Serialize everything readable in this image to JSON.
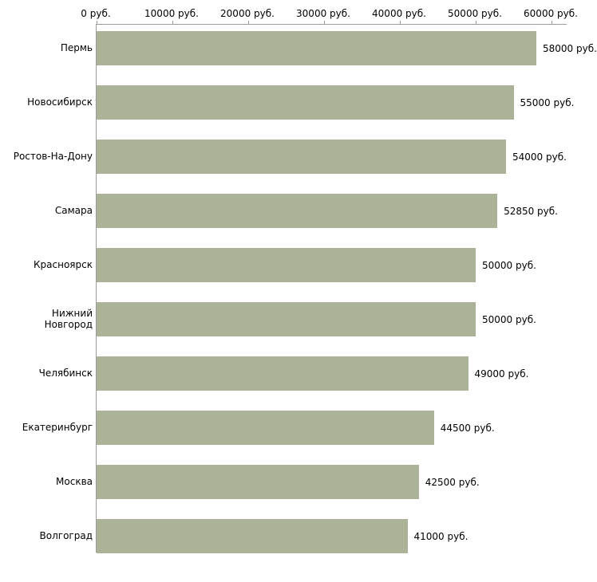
{
  "chart_data": {
    "type": "bar",
    "orientation": "horizontal",
    "title": "",
    "xlabel": "",
    "ylabel": "",
    "unit": "руб.",
    "categories": [
      "Пермь",
      "Новосибирск",
      "Ростов-На-Дону",
      "Самара",
      "Красноярск",
      "Нижний Новгород",
      "Челябинск",
      "Екатеринбург",
      "Москва",
      "Волгоград"
    ],
    "values": [
      58000,
      55000,
      54000,
      52850,
      50000,
      50000,
      49000,
      44500,
      42500,
      41000
    ],
    "value_labels": [
      "58000 руб.",
      "55000 руб.",
      "54000 руб.",
      "52850 руб.",
      "50000 руб.",
      "50000 руб.",
      "49000 руб.",
      "44500 руб.",
      "42500 руб.",
      "41000 руб."
    ],
    "x_ticks": [
      "0 руб.",
      "10000 руб.",
      "20000 руб.",
      "30000 руб.",
      "40000 руб.",
      "50000 руб.",
      "60000 руб."
    ],
    "x_tick_values": [
      0,
      10000,
      20000,
      30000,
      40000,
      50000,
      60000
    ],
    "xlim": [
      0,
      62100
    ],
    "bar_color": "#aab397",
    "axis_color": "#9b9b9b",
    "text_color": "#000000",
    "background": "#ffffff",
    "grid": false,
    "legend": false
  }
}
